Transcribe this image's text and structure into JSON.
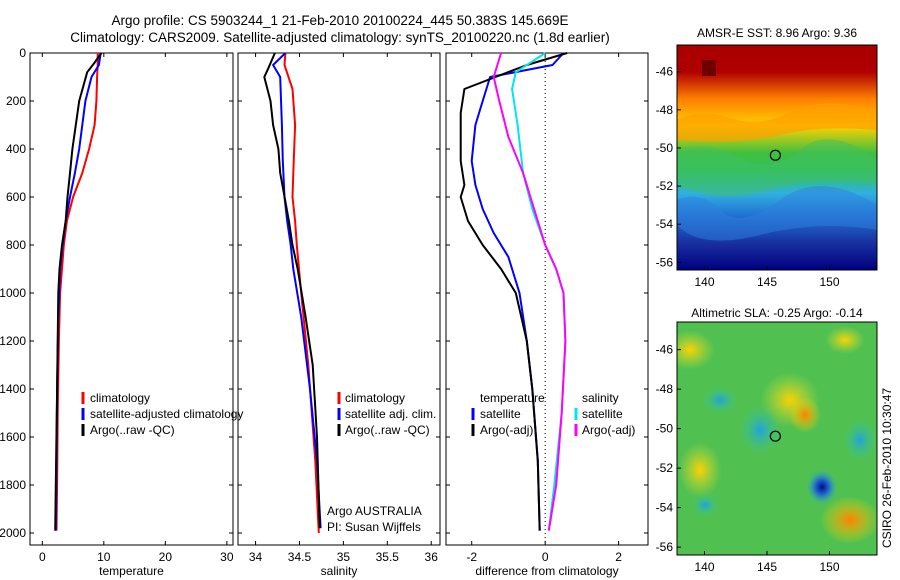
{
  "header": {
    "title_line1": "Argo profile: CS 5903244_1 21-Feb-2010 20100224_445 50.383S 145.669E",
    "title_line2": "Climatology: CARS2009. Satellite-adjusted climatology: synTS_20100220.nc (1.8d earlier)"
  },
  "colors": {
    "climatology": "#ff0000",
    "satellite": "#0000ff",
    "argo": "#000000",
    "satellite_salinity": "#00e5ee",
    "argo_salinity_adj": "#ff00ff"
  },
  "chart_data": [
    {
      "type": "line",
      "id": "temperature",
      "xlabel": "temperature",
      "ylabel": "",
      "xlim": [
        -2,
        31
      ],
      "ylim": [
        2050,
        0
      ],
      "xticks": [
        0,
        10,
        20,
        30
      ],
      "yticks": [
        0,
        200,
        400,
        600,
        800,
        1000,
        1200,
        1400,
        1600,
        1800,
        2000
      ],
      "legend": [
        "climatology",
        "satellite-adjusted climatology",
        "Argo(..raw -QC)"
      ],
      "series": [
        {
          "name": "climatology",
          "color": "#ff0000",
          "x": [
            9.0,
            9.0,
            8.9,
            8.8,
            8.5,
            7.6,
            6.5,
            5.0,
            4.0,
            3.5,
            3.2,
            2.9,
            2.7,
            2.5,
            2.4,
            2.3
          ],
          "y": [
            0,
            50,
            100,
            200,
            300,
            400,
            500,
            600,
            700,
            800,
            900,
            1000,
            1200,
            1500,
            1800,
            1990
          ]
        },
        {
          "name": "satellite-adjusted climatology",
          "color": "#0000ff",
          "x": [
            9.5,
            9.2,
            8.0,
            7.0,
            6.5,
            6.0,
            5.3,
            4.5,
            3.8,
            3.3,
            2.9,
            2.6,
            2.4,
            2.3,
            2.2
          ],
          "y": [
            0,
            50,
            100,
            200,
            300,
            400,
            500,
            600,
            700,
            800,
            900,
            1100,
            1400,
            1700,
            1990
          ]
        },
        {
          "name": "Argo(..raw -QC)",
          "color": "#000000",
          "x": [
            9.6,
            8.5,
            7.3,
            6.0,
            4.9,
            4.5,
            4.1,
            3.8,
            3.2,
            2.8,
            2.6,
            2.4,
            2.2,
            2.1
          ],
          "y": [
            0,
            40,
            80,
            200,
            400,
            500,
            600,
            700,
            800,
            900,
            1000,
            1400,
            1800,
            1990
          ]
        }
      ]
    },
    {
      "type": "line",
      "id": "salinity",
      "xlabel": "salinity",
      "xlim": [
        33.8,
        36.1
      ],
      "ylim": [
        2050,
        0
      ],
      "xticks": [
        34,
        34.5,
        35,
        35.5,
        36
      ],
      "legend": [
        "climatology",
        "satellite adj. clim.",
        "Argo(..raw -QC)"
      ],
      "annotations": [
        "Argo AUSTRALIA",
        "PI: Susan Wijffels"
      ],
      "series": [
        {
          "name": "climatology",
          "color": "#ff0000",
          "x": [
            34.34,
            34.33,
            34.42,
            34.45,
            34.44,
            34.43,
            34.42,
            34.45,
            34.47,
            34.52,
            34.6,
            34.68,
            34.72
          ],
          "y": [
            0,
            50,
            150,
            300,
            400,
            500,
            600,
            700,
            800,
            1000,
            1300,
            1700,
            2000
          ]
        },
        {
          "name": "satellite adj. clim.",
          "color": "#0000ff",
          "x": [
            34.34,
            34.2,
            34.28,
            34.3,
            34.31,
            34.33,
            34.36,
            34.4,
            34.43,
            34.52,
            34.62,
            34.7,
            34.74
          ],
          "y": [
            0,
            50,
            100,
            300,
            450,
            600,
            700,
            800,
            900,
            1100,
            1400,
            1700,
            1980
          ]
        },
        {
          "name": "Argo(..raw -QC)",
          "color": "#000000",
          "x": [
            34.22,
            34.15,
            34.1,
            34.17,
            34.2,
            34.26,
            34.28,
            34.38,
            34.42,
            34.48,
            34.57,
            34.65,
            34.7,
            34.73
          ],
          "y": [
            0,
            60,
            100,
            200,
            300,
            400,
            500,
            700,
            800,
            900,
            1100,
            1300,
            1600,
            1980
          ]
        }
      ]
    },
    {
      "type": "line",
      "id": "difference",
      "xlabel": "difference from climatology",
      "xlim": [
        -2.7,
        2.8
      ],
      "ylim": [
        2050,
        0
      ],
      "xticks": [
        -2,
        0,
        2
      ],
      "zero_line": true,
      "legend": {
        "temperature": [
          "satellite",
          "Argo(-adj)"
        ],
        "salinity": [
          "satellite",
          "Argo(-adj)"
        ]
      },
      "series": [
        {
          "name": "temperature satellite",
          "color": "#0000ff",
          "x": [
            0.5,
            0.2,
            -1.5,
            -1.7,
            -1.9,
            -2.0,
            -1.9,
            -1.7,
            -1.4,
            -1.0,
            -0.7,
            -0.5,
            -0.35,
            -0.2,
            -0.15
          ],
          "y": [
            0,
            50,
            100,
            200,
            300,
            450,
            550,
            650,
            750,
            850,
            1000,
            1200,
            1400,
            1700,
            1990
          ]
        },
        {
          "name": "temperature Argo(-adj)",
          "color": "#000000",
          "x": [
            0.6,
            -0.5,
            -2.2,
            -2.3,
            -2.3,
            -2.3,
            -2.2,
            -2.3,
            -2.1,
            -1.7,
            -1.2,
            -0.8,
            -0.5,
            -0.35,
            -0.2,
            -0.15
          ],
          "y": [
            0,
            50,
            150,
            250,
            300,
            450,
            550,
            600,
            700,
            800,
            900,
            1000,
            1200,
            1400,
            1700,
            1990
          ]
        },
        {
          "name": "salinity satellite",
          "color": "#00e5ee",
          "x": [
            0.0,
            -0.8,
            -0.9,
            -0.75,
            -0.6,
            -0.35,
            0.0,
            0.3,
            0.5,
            0.55,
            0.45,
            0.25,
            0.1
          ],
          "y": [
            0,
            80,
            150,
            300,
            500,
            650,
            800,
            900,
            1000,
            1200,
            1500,
            1800,
            1990
          ]
        },
        {
          "name": "salinity Argo(-adj)",
          "color": "#ff00ff",
          "x": [
            -1.2,
            -1.4,
            -1.25,
            -1.0,
            -0.6,
            -0.3,
            0.0,
            0.3,
            0.5,
            0.55,
            0.45,
            0.3,
            0.1
          ],
          "y": [
            0,
            100,
            200,
            350,
            500,
            650,
            800,
            900,
            1000,
            1200,
            1500,
            1800,
            1990
          ]
        }
      ]
    },
    {
      "type": "heatmap",
      "id": "sst_map",
      "title": "AMSR-E SST: 8.96 Argo: 9.36",
      "xticks": [
        140,
        145,
        150
      ],
      "yticks": [
        -46,
        -48,
        -50,
        -52,
        -54,
        -56
      ],
      "xlim": [
        137.8,
        153.8
      ],
      "ylim": [
        -56.4,
        -44.6
      ],
      "marker": {
        "lon": 145.669,
        "lat": -50.383
      }
    },
    {
      "type": "heatmap",
      "id": "sla_map",
      "title": "Altimetric SLA: -0.25 Argo: -0.14",
      "xticks": [
        140,
        145,
        150
      ],
      "yticks": [
        -46,
        -48,
        -50,
        -52,
        -54,
        -56
      ],
      "xlim": [
        137.8,
        153.8
      ],
      "ylim": [
        -56.4,
        -44.6
      ],
      "marker": {
        "lon": 145.669,
        "lat": -50.383
      }
    }
  ],
  "credit": "CSIRO 26-Feb-2010 10:30:47"
}
